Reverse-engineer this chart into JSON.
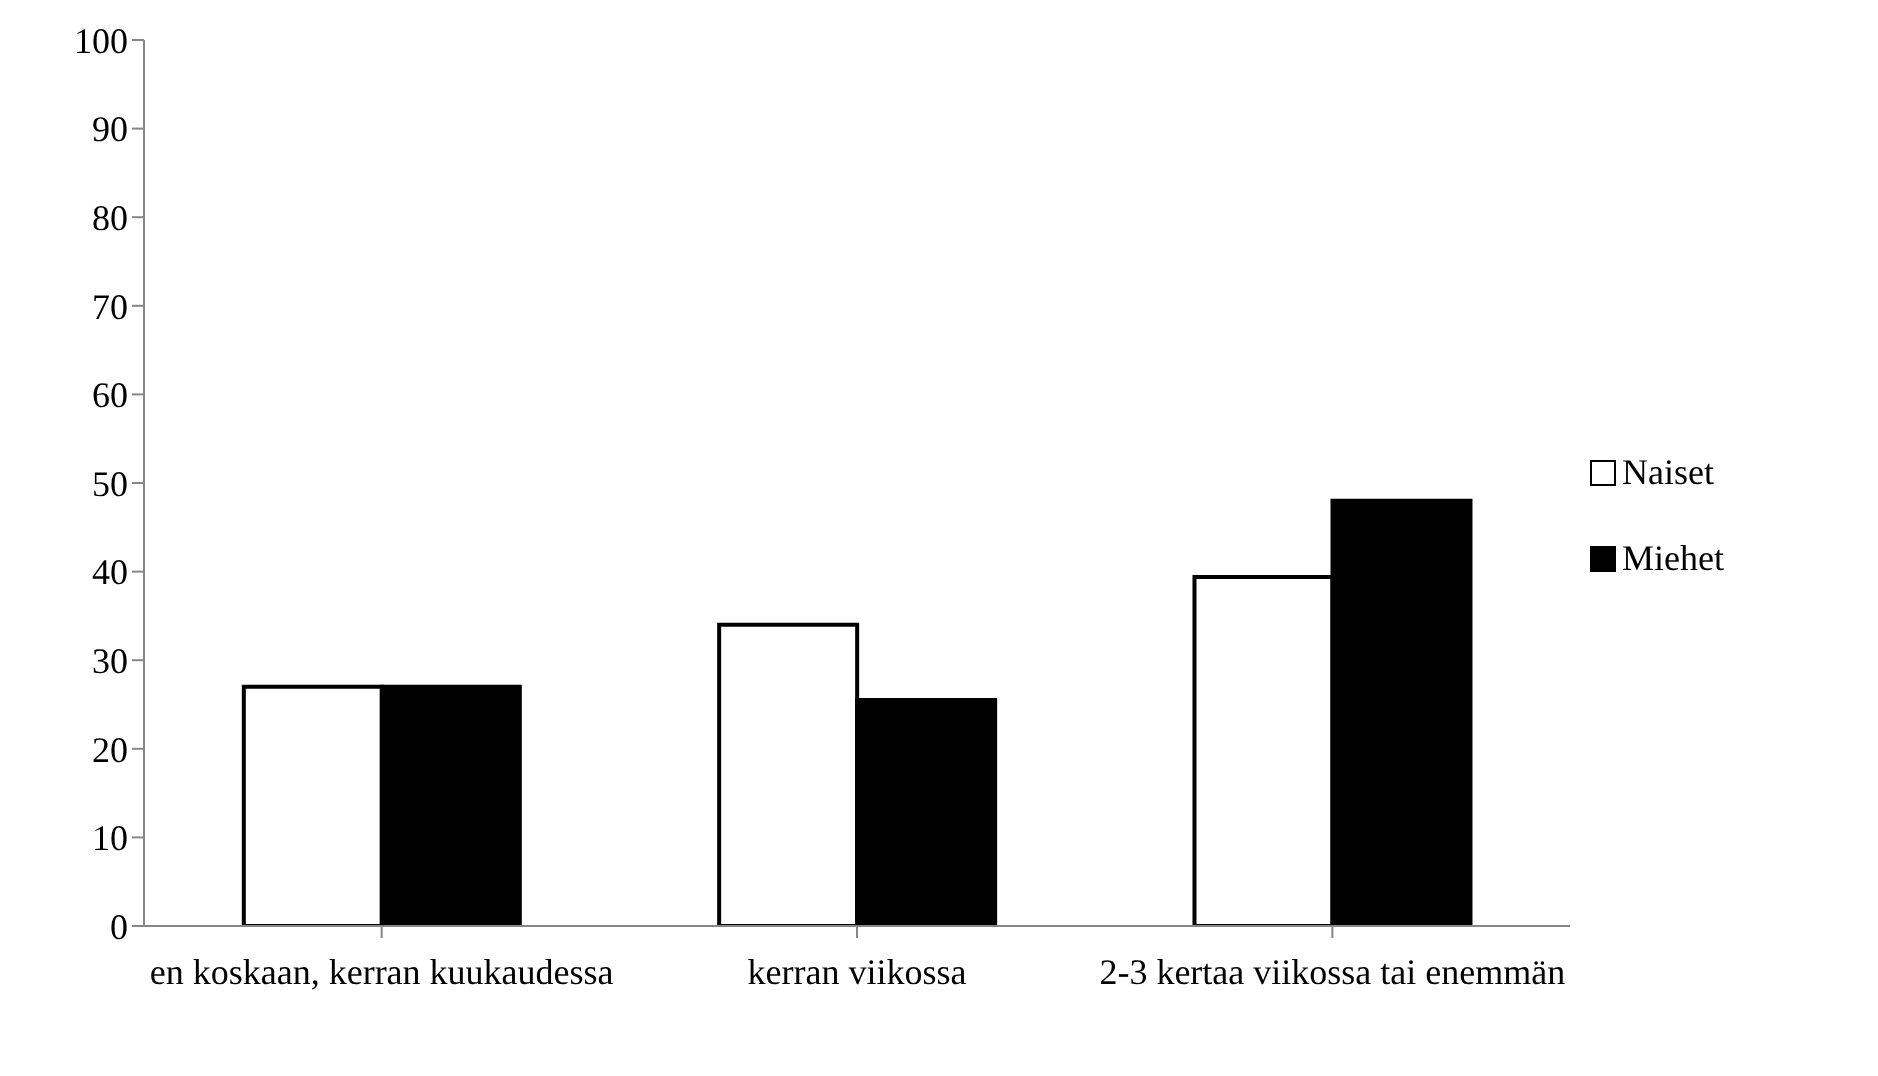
{
  "chart_data": {
    "type": "bar",
    "categories": [
      "en koskaan, kerran kuukaudessa",
      "kerran viikossa",
      "2-3 kertaa viikossa tai enemmän"
    ],
    "series": [
      {
        "name": "Naiset",
        "color": "#ffffff",
        "values": [
          27,
          34,
          39.4
        ]
      },
      {
        "name": "Miehet",
        "color": "#000000",
        "values": [
          27,
          25.5,
          48
        ]
      }
    ],
    "ylim": [
      0,
      100
    ],
    "yticks": [
      0,
      10,
      20,
      30,
      40,
      50,
      60,
      70,
      80,
      90,
      100
    ],
    "grid": false,
    "legend": "right"
  }
}
